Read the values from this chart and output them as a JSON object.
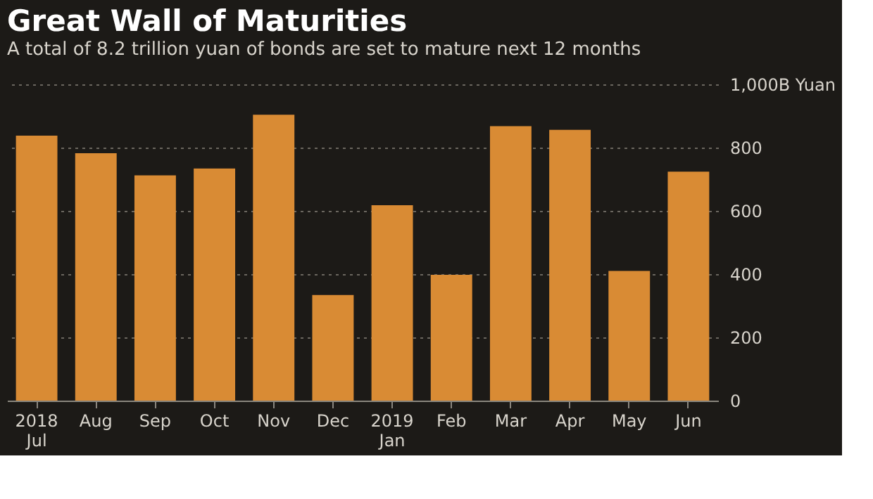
{
  "chart_data": {
    "type": "bar",
    "title": "Great Wall of Maturities",
    "subtitle": "A total of 8.2 trillion yuan of bonds are set to mature next 12 months",
    "categories": [
      "2018\nJul",
      "Aug",
      "Sep",
      "Oct",
      "Nov",
      "Dec",
      "2019\nJan",
      "Feb",
      "Mar",
      "Apr",
      "May",
      "Jun"
    ],
    "values": [
      838,
      782,
      712,
      734,
      904,
      334,
      618,
      398,
      868,
      856,
      410,
      724
    ],
    "color": "#d98b34",
    "ylim": [
      0,
      1000
    ],
    "yticks": [
      0,
      200,
      400,
      600,
      800,
      {
        "value": 1000,
        "label": "1,000B Yuan"
      }
    ],
    "grid": "y"
  }
}
